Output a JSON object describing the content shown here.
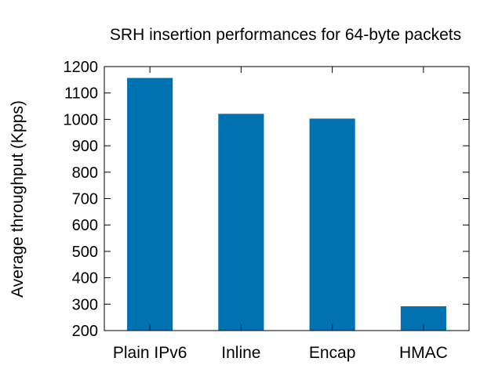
{
  "chart_data": {
    "type": "bar",
    "title": "SRH insertion performances for 64-byte packets",
    "xlabel": "",
    "ylabel": "Average throughput (Kpps)",
    "categories": [
      "Plain IPv6",
      "Inline",
      "Encap",
      "HMAC"
    ],
    "values": [
      1157,
      1021,
      1003,
      292
    ],
    "ylim": [
      200,
      1200
    ],
    "yticks": [
      200,
      300,
      400,
      500,
      600,
      700,
      800,
      900,
      1000,
      1100,
      1200
    ],
    "grid": false,
    "legend": "none",
    "bar_color": "#0072b2"
  }
}
